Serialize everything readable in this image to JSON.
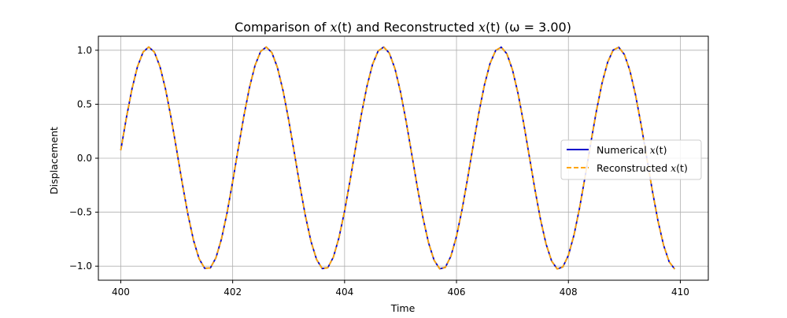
{
  "chart_data": {
    "type": "line",
    "title_prefix": "Comparison of ",
    "title_var1": "x",
    "title_arg1": "(t)",
    "title_middle": " and Reconstructed ",
    "title_var2": "x",
    "title_arg2": "(t)",
    "title_suffix": " (ω = 3.00)",
    "xlabel": "Time",
    "ylabel": "Displacement",
    "xlim": [
      399.6,
      410.5
    ],
    "ylim": [
      -1.13,
      1.13
    ],
    "xticks": [
      400,
      402,
      404,
      406,
      408,
      410
    ],
    "xtick_labels": [
      "400",
      "402",
      "404",
      "406",
      "408",
      "410"
    ],
    "yticks": [
      -1.0,
      -0.5,
      0.0,
      0.5,
      1.0
    ],
    "ytick_labels": [
      "−1.0",
      "−0.5",
      "0.0",
      "0.5",
      "1.0"
    ],
    "grid": true,
    "legend_position": "right",
    "x_start": 400,
    "x_end": 409.9,
    "x_step": 0.1,
    "wave": {
      "amplitude": 1.03,
      "angular_frequency": 3.0,
      "peak_time": 400.5
    },
    "series": [
      {
        "name_prefix": "Numerical ",
        "name_var": "x",
        "name_arg": "(t)",
        "color": "#0000cc",
        "style": "solid"
      },
      {
        "name_prefix": "Reconstructed ",
        "name_var": "x",
        "name_arg": "(t)",
        "color": "#ffa500",
        "style": "dashed"
      }
    ]
  }
}
